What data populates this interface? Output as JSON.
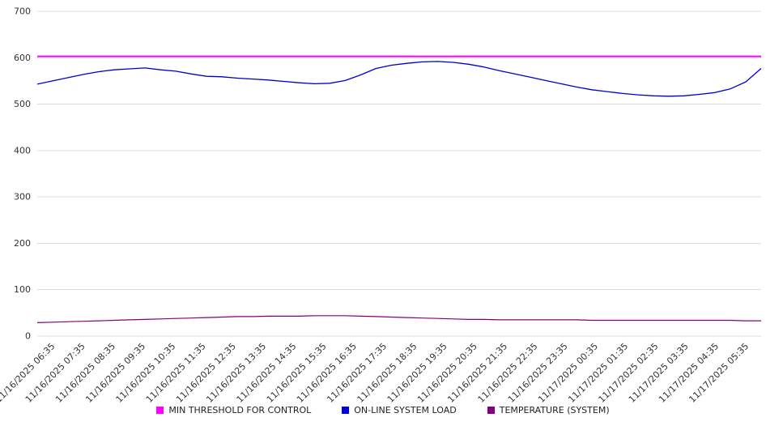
{
  "chart_data": {
    "type": "line",
    "title": "",
    "grid": "horizontal",
    "legend_position": "bottom",
    "ylim": [
      0,
      700
    ],
    "y_ticks": [
      0,
      100,
      200,
      300,
      400,
      500,
      600,
      700
    ],
    "x_tick_labels": [
      "11/16/2025 06:35",
      "11/16/2025 07:35",
      "11/16/2025 08:35",
      "11/16/2025 09:35",
      "11/16/2025 10:35",
      "11/16/2025 11:35",
      "11/16/2025 12:35",
      "11/16/2025 13:35",
      "11/16/2025 14:35",
      "11/16/2025 15:35",
      "11/16/2025 16:35",
      "11/16/2025 17:35",
      "11/16/2025 18:35",
      "11/16/2025 19:35",
      "11/16/2025 20:35",
      "11/16/2025 21:35",
      "11/16/2025 22:35",
      "11/16/2025 23:35",
      "11/17/2025 00:35",
      "11/17/2025 01:35",
      "11/17/2025 02:35",
      "11/17/2025 03:35",
      "11/17/2025 04:35",
      "11/17/2025 05:35"
    ],
    "series": [
      {
        "name": "MIN THRESHOLD FOR CONTROL",
        "color": "#ff00ff",
        "stroke_width": 2,
        "values": [
          603,
          603
        ]
      },
      {
        "name": "ON-LINE SYSTEM LOAD",
        "color": "#0000cd",
        "stroke_width": 1.3,
        "values": [
          543,
          550,
          557,
          564,
          570,
          574,
          576,
          578,
          574,
          571,
          565,
          560,
          559,
          556,
          554,
          552,
          549,
          546,
          544,
          545,
          551,
          563,
          577,
          584,
          588,
          591,
          592,
          590,
          586,
          580,
          572,
          565,
          558,
          551,
          544,
          537,
          531,
          527,
          523,
          520,
          518,
          517,
          518,
          521,
          525,
          533,
          548,
          577
        ]
      },
      {
        "name": "TEMPERATURE (SYSTEM)",
        "color": "#800080",
        "stroke_width": 1.2,
        "values": [
          29,
          30,
          31,
          32,
          33,
          34,
          35,
          36,
          37,
          38,
          39,
          40,
          41,
          42,
          42,
          43,
          43,
          43,
          44,
          44,
          44,
          43,
          42,
          41,
          40,
          39,
          38,
          37,
          36,
          36,
          35,
          35,
          35,
          35,
          35,
          35,
          34,
          34,
          34,
          34,
          34,
          34,
          34,
          34,
          34,
          34,
          33,
          33
        ]
      }
    ]
  }
}
